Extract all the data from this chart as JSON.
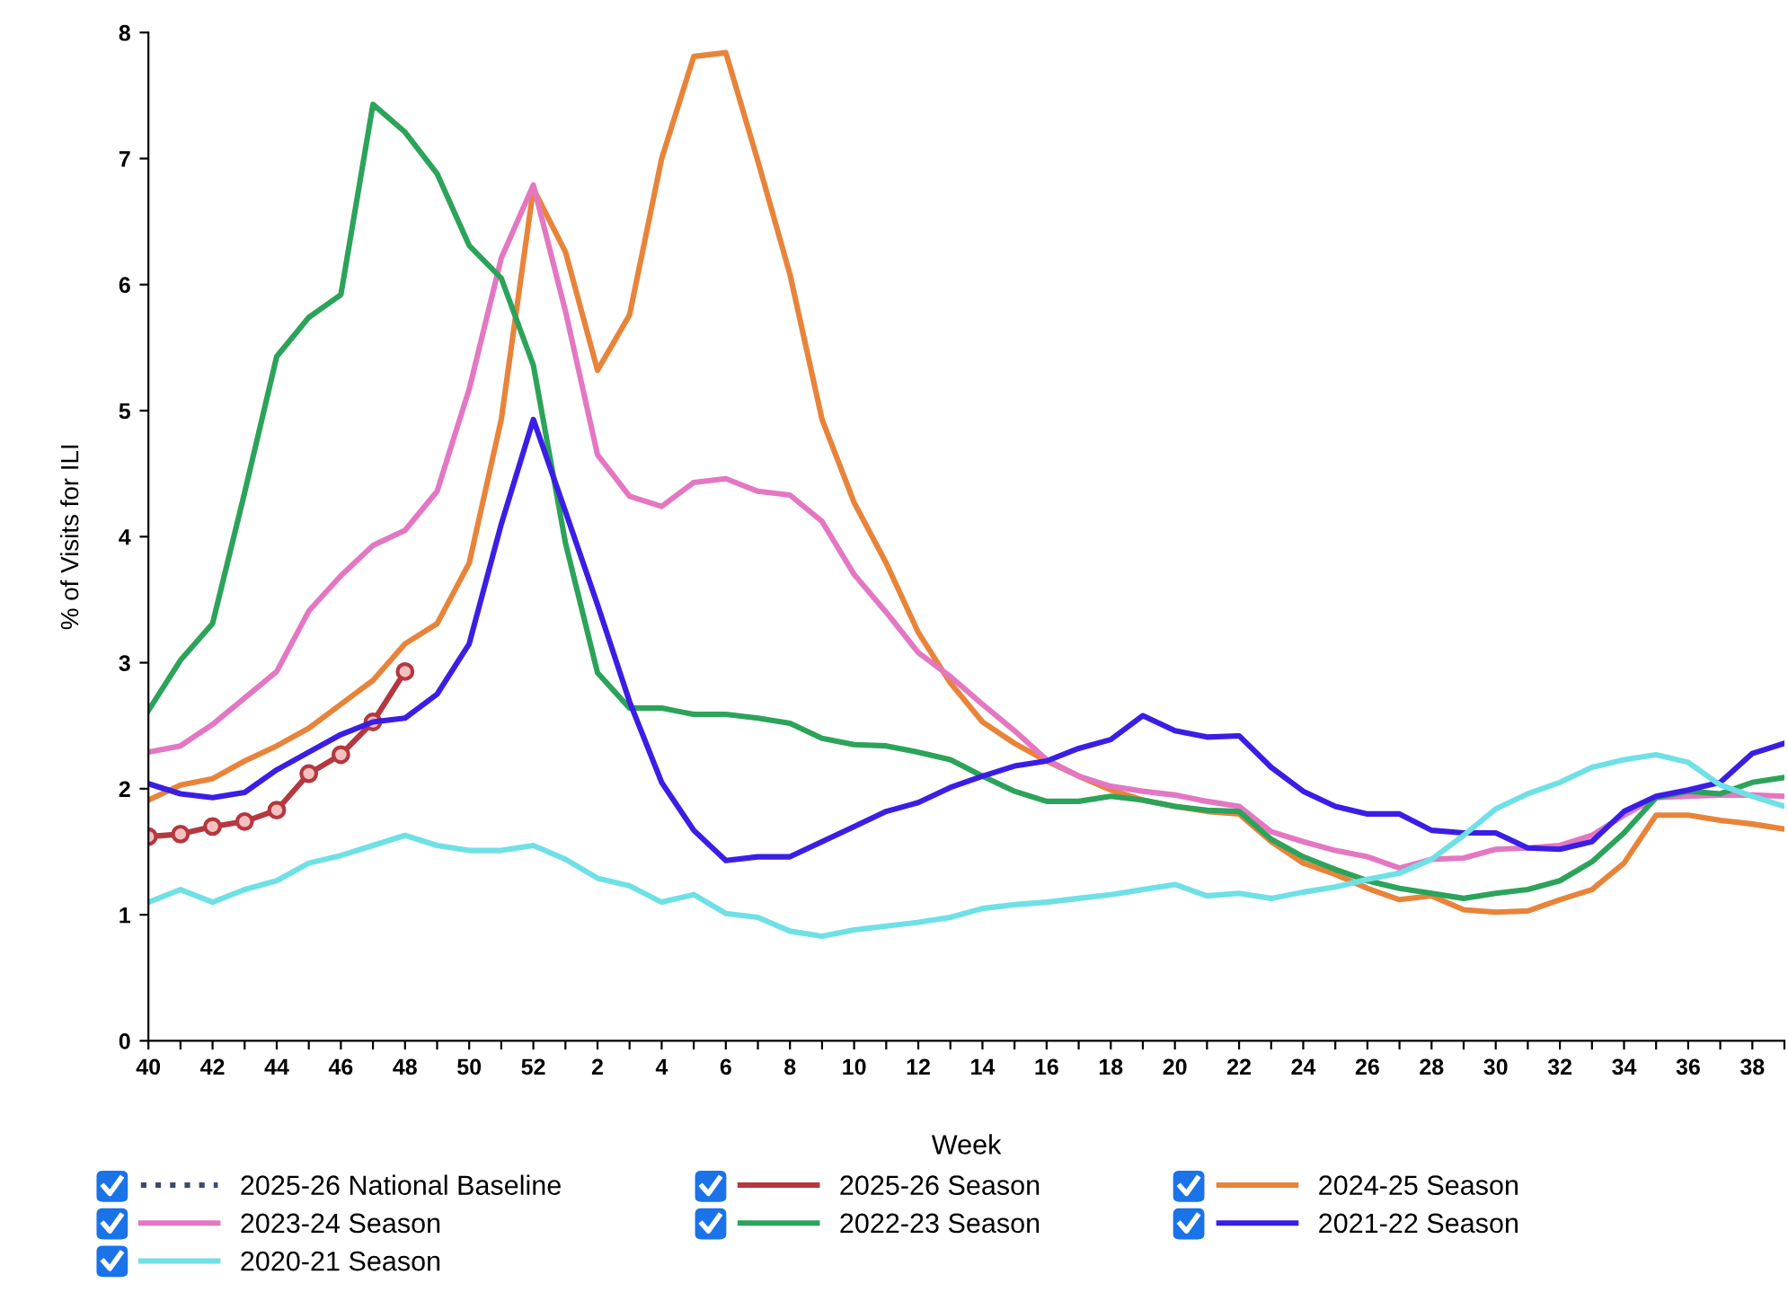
{
  "chart_data": {
    "type": "line",
    "xlabel": "Week",
    "ylabel": "% of Visits for ILI",
    "categories": [
      "40",
      null,
      "42",
      null,
      "44",
      null,
      "46",
      null,
      "48",
      null,
      "50",
      null,
      "52",
      null,
      "2",
      null,
      "4",
      null,
      "6",
      null,
      "8",
      null,
      "10",
      null,
      "12",
      null,
      "14",
      null,
      "16",
      null,
      "18",
      null,
      "20",
      null,
      "22",
      null,
      "24",
      null,
      "26",
      null,
      "28",
      null,
      "30",
      null,
      "32",
      null,
      "34",
      null,
      "36",
      null,
      "38",
      null
    ],
    "ylim": [
      0,
      8
    ],
    "yticks": [
      0,
      1,
      2,
      3,
      4,
      5,
      6,
      7,
      8
    ],
    "grid": false,
    "legend": "bottom",
    "marker": "none",
    "series": [
      {
        "name": "2025-26 National Baseline",
        "color": "#3b4a6b",
        "line_style": "dotted",
        "values": [
          null,
          null,
          null,
          null,
          null,
          null,
          null,
          null,
          null,
          null,
          null,
          null,
          null,
          null,
          null,
          null,
          null,
          null,
          null,
          null,
          null,
          null,
          null,
          null,
          null,
          null,
          null,
          null,
          null,
          null,
          null,
          null,
          null,
          null,
          null,
          null,
          null,
          null,
          null,
          null,
          null,
          null,
          null,
          null,
          null,
          null,
          null,
          null,
          null,
          null,
          null,
          null
        ]
      },
      {
        "name": "2025-26 Season",
        "color": "#b5373f",
        "marker": "circle",
        "values": [
          1.62,
          1.64,
          1.7,
          1.74,
          1.83,
          2.12,
          2.27,
          2.53,
          2.93,
          null,
          null,
          null,
          null,
          null,
          null,
          null,
          null,
          null,
          null,
          null,
          null,
          null,
          null,
          null,
          null,
          null,
          null,
          null,
          null,
          null,
          null,
          null,
          null,
          null,
          null,
          null,
          null,
          null,
          null,
          null,
          null,
          null,
          null,
          null,
          null,
          null,
          null,
          null,
          null,
          null,
          null,
          null
        ]
      },
      {
        "name": "2024-25 Season",
        "color": "#e8843a",
        "values": [
          1.91,
          2.03,
          2.08,
          2.22,
          2.34,
          2.48,
          2.67,
          2.86,
          3.15,
          3.31,
          3.79,
          4.93,
          6.76,
          6.26,
          5.32,
          5.76,
          7.0,
          7.81,
          7.84,
          6.98,
          6.08,
          4.93,
          4.27,
          3.79,
          3.24,
          2.84,
          2.53,
          2.36,
          2.22,
          2.1,
          1.99,
          1.91,
          1.86,
          1.82,
          1.8,
          1.58,
          1.41,
          1.32,
          1.21,
          1.12,
          1.15,
          1.04,
          1.02,
          1.03,
          1.12,
          1.2,
          1.41,
          1.79,
          1.79,
          1.75,
          1.72,
          1.68
        ]
      },
      {
        "name": "2023-24 Season",
        "color": "#e377c2",
        "values": [
          2.29,
          2.34,
          2.51,
          2.72,
          2.93,
          3.41,
          3.69,
          3.93,
          4.05,
          4.36,
          5.17,
          6.21,
          6.79,
          5.79,
          4.65,
          4.32,
          4.24,
          4.43,
          4.46,
          4.36,
          4.33,
          4.12,
          3.7,
          3.4,
          3.08,
          2.89,
          2.67,
          2.46,
          2.23,
          2.1,
          2.02,
          1.98,
          1.95,
          1.9,
          1.86,
          1.66,
          1.58,
          1.51,
          1.46,
          1.37,
          1.44,
          1.45,
          1.52,
          1.53,
          1.55,
          1.63,
          1.79,
          1.93,
          1.94,
          1.95,
          1.95,
          1.94
        ]
      },
      {
        "name": "2022-23 Season",
        "color": "#2ca35a",
        "values": [
          2.62,
          3.02,
          3.31,
          4.35,
          5.43,
          5.74,
          5.92,
          7.43,
          7.21,
          6.88,
          6.31,
          6.05,
          5.36,
          3.95,
          2.92,
          2.64,
          2.64,
          2.59,
          2.59,
          2.56,
          2.52,
          2.4,
          2.35,
          2.34,
          2.29,
          2.23,
          2.1,
          1.98,
          1.9,
          1.9,
          1.94,
          1.91,
          1.86,
          1.83,
          1.82,
          1.6,
          1.46,
          1.36,
          1.27,
          1.21,
          1.17,
          1.13,
          1.17,
          1.2,
          1.27,
          1.42,
          1.65,
          1.93,
          1.98,
          1.96,
          2.05,
          2.09
        ]
      },
      {
        "name": "2021-22 Season",
        "color": "#3a1ee6",
        "values": [
          2.04,
          1.96,
          1.93,
          1.97,
          2.15,
          2.29,
          2.43,
          2.53,
          2.56,
          2.75,
          3.15,
          4.1,
          4.93,
          4.2,
          3.46,
          2.69,
          2.05,
          1.67,
          1.43,
          1.46,
          1.46,
          1.58,
          1.7,
          1.82,
          1.89,
          2.01,
          2.1,
          2.18,
          2.22,
          2.32,
          2.39,
          2.58,
          2.46,
          2.41,
          2.42,
          2.17,
          1.98,
          1.86,
          1.8,
          1.8,
          1.67,
          1.65,
          1.65,
          1.53,
          1.52,
          1.58,
          1.82,
          1.94,
          1.99,
          2.05,
          2.28,
          2.36
        ]
      },
      {
        "name": "2020-21 Season",
        "color": "#6fe0e6",
        "values": [
          1.1,
          1.2,
          1.1,
          1.2,
          1.27,
          1.41,
          1.47,
          1.55,
          1.63,
          1.55,
          1.51,
          1.51,
          1.55,
          1.44,
          1.29,
          1.23,
          1.1,
          1.16,
          1.01,
          0.98,
          0.87,
          0.83,
          0.88,
          0.91,
          0.94,
          0.98,
          1.05,
          1.08,
          1.1,
          1.13,
          1.16,
          1.2,
          1.24,
          1.15,
          1.17,
          1.13,
          1.18,
          1.22,
          1.28,
          1.33,
          1.44,
          1.63,
          1.84,
          1.96,
          2.05,
          2.17,
          2.23,
          2.27,
          2.21,
          2.03,
          1.94,
          1.86
        ]
      }
    ]
  }
}
